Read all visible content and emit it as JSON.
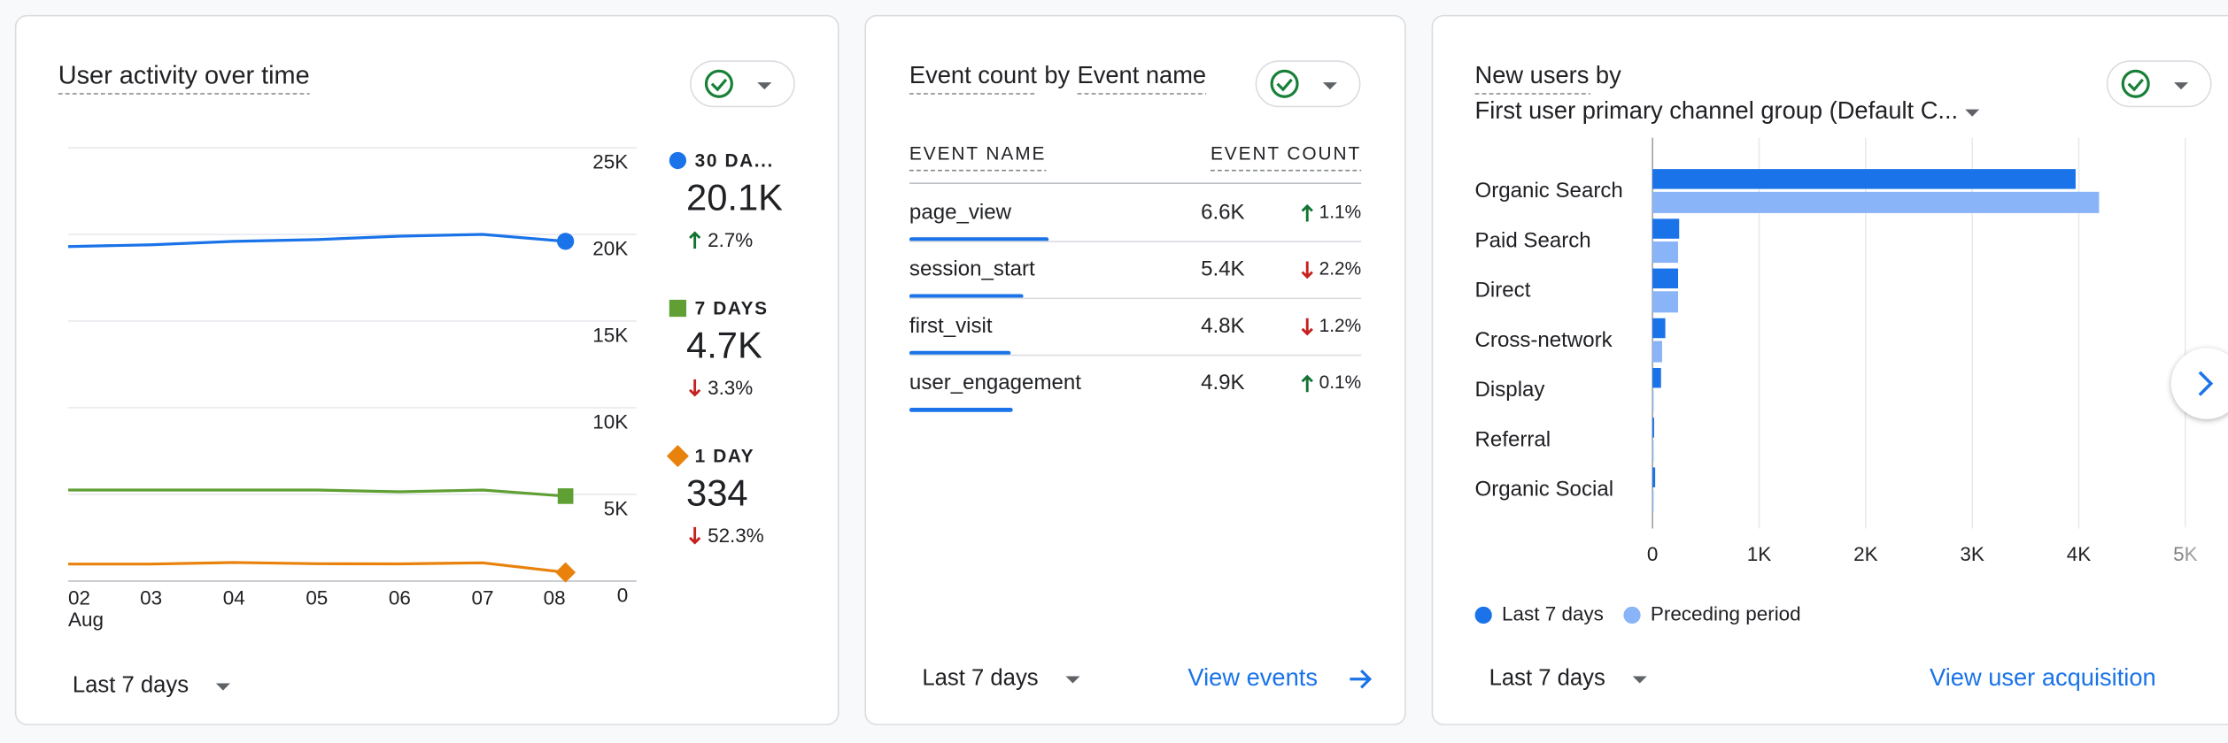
{
  "chart_data": [
    {
      "type": "line",
      "title": "User activity over time",
      "categories": [
        "02",
        "03",
        "04",
        "05",
        "06",
        "07",
        "08"
      ],
      "x_sublabel": "Aug",
      "ylim": [
        0,
        25000
      ],
      "yticks": [
        0,
        {
          "value": 5000,
          "label": "5K"
        },
        {
          "value": 10000,
          "label": "10K"
        },
        {
          "value": 15000,
          "label": "15K"
        },
        {
          "value": 20000,
          "label": "20K"
        },
        {
          "value": 25000,
          "label": "25K"
        }
      ],
      "grid": true,
      "series": [
        {
          "name": "30 DA...",
          "color": "#1a73e8",
          "marker": "circle",
          "values": [
            19300,
            19400,
            19600,
            19700,
            19900,
            20000,
            19600
          ],
          "summary": "20.1K",
          "change": "2.7%",
          "direction": "up"
        },
        {
          "name": "7 DAYS",
          "color": "#5f9f34",
          "marker": "square",
          "values": [
            5250,
            5250,
            5250,
            5250,
            5150,
            5250,
            4900
          ],
          "summary": "4.7K",
          "change": "3.3%",
          "direction": "down"
        },
        {
          "name": "1 DAY",
          "color": "#e8820c",
          "marker": "diamond",
          "values": [
            980,
            980,
            1070,
            1000,
            990,
            1050,
            500
          ],
          "summary": "334",
          "change": "52.3%",
          "direction": "down"
        }
      ],
      "date_range": "Last 7 days"
    },
    {
      "type": "bar",
      "orientation": "horizontal",
      "title": "New users by",
      "subtitle": "First user primary channel group (Default C...",
      "categories": [
        "Organic Search",
        "Paid Search",
        "Direct",
        "Cross-network",
        "Display",
        "Referral",
        "Organic Social"
      ],
      "xlim": [
        0,
        5000
      ],
      "xticks": [
        0,
        {
          "value": 1000,
          "label": "1K"
        },
        {
          "value": 2000,
          "label": "2K"
        },
        {
          "value": 3000,
          "label": "3K"
        },
        {
          "value": 4000,
          "label": "4K"
        },
        {
          "value": 5000,
          "label": "5K"
        }
      ],
      "grid": true,
      "series": [
        {
          "name": "Last 7 days",
          "color": "#1a73e8",
          "values": [
            3970,
            250,
            240,
            120,
            80,
            15,
            25
          ]
        },
        {
          "name": "Preceding period",
          "color": "#8ab4f8",
          "values": [
            4190,
            240,
            240,
            90,
            10,
            10,
            10
          ]
        }
      ],
      "date_range": "Last 7 days",
      "link": "View user acquisition"
    }
  ],
  "event_table": {
    "title_parts": [
      "Event count",
      "by",
      "Event name"
    ],
    "columns": [
      "EVENT NAME",
      "EVENT COUNT"
    ],
    "rows": [
      {
        "name": "page_view",
        "count": 6600,
        "count_label": "6.6K",
        "change": "1.1%",
        "direction": "up"
      },
      {
        "name": "session_start",
        "count": 5400,
        "count_label": "5.4K",
        "change": "2.2%",
        "direction": "down"
      },
      {
        "name": "first_visit",
        "count": 4800,
        "count_label": "4.8K",
        "change": "1.2%",
        "direction": "down"
      },
      {
        "name": "user_engagement",
        "count": 4900,
        "count_label": "4.9K",
        "change": "0.1%",
        "direction": "up"
      }
    ],
    "date_range": "Last 7 days",
    "link": "View events"
  }
}
